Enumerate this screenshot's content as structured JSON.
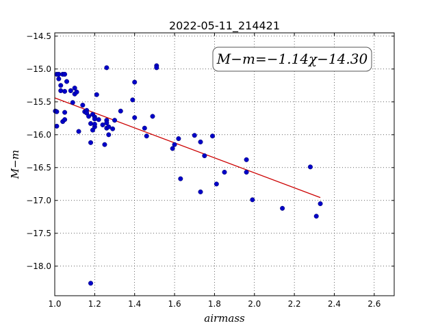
{
  "chart_data": {
    "type": "scatter",
    "title": "2022-05-11_214421",
    "xlabel": "airmass",
    "ylabel": "M−m",
    "xlim": [
      1.0,
      2.7
    ],
    "ylim": [
      -18.45,
      -14.45
    ],
    "y_inverted": true,
    "grid": true,
    "grid_style": "dotted",
    "x_ticks": [
      1.0,
      1.2,
      1.4,
      1.6,
      1.8,
      2.0,
      2.2,
      2.4,
      2.6
    ],
    "x_tick_labels": [
      "1.0",
      "1.2",
      "1.4",
      "1.6",
      "1.8",
      "2.0",
      "2.2",
      "2.4",
      "2.6"
    ],
    "y_ticks": [
      -14.5,
      -15.0,
      -15.5,
      -16.0,
      -16.5,
      -17.0,
      -17.5,
      -18.0
    ],
    "y_tick_labels": [
      "−14.5",
      "−15.0",
      "−15.5",
      "−16.0",
      "−16.5",
      "−17.0",
      "−17.5",
      "−18.0"
    ],
    "annotation": "M−m=−1.14χ−14.30",
    "colors": {
      "points": "#0000c8",
      "fit_line": "#cc0000"
    },
    "series": [
      {
        "points": [
          [
            1.003,
            -15.64
          ],
          [
            1.01,
            -15.65
          ],
          [
            1.01,
            -15.87
          ],
          [
            1.01,
            -15.08
          ],
          [
            1.02,
            -15.08
          ],
          [
            1.02,
            -15.15
          ],
          [
            1.03,
            -15.25
          ],
          [
            1.03,
            -15.33
          ],
          [
            1.04,
            -15.08
          ],
          [
            1.04,
            -15.8
          ],
          [
            1.05,
            -15.08
          ],
          [
            1.05,
            -15.77
          ],
          [
            1.05,
            -15.34
          ],
          [
            1.05,
            -15.66
          ],
          [
            1.06,
            -15.19
          ],
          [
            1.08,
            -15.33
          ],
          [
            1.09,
            -15.51
          ],
          [
            1.1,
            -15.29
          ],
          [
            1.1,
            -15.38
          ],
          [
            1.11,
            -15.35
          ],
          [
            1.12,
            -15.95
          ],
          [
            1.14,
            -15.55
          ],
          [
            1.15,
            -15.65
          ],
          [
            1.16,
            -15.63
          ],
          [
            1.16,
            -15.67
          ],
          [
            1.17,
            -15.72
          ],
          [
            1.18,
            -15.83
          ],
          [
            1.18,
            -16.12
          ],
          [
            1.18,
            -18.26
          ],
          [
            1.19,
            -15.69
          ],
          [
            1.19,
            -15.93
          ],
          [
            1.2,
            -15.88
          ],
          [
            1.2,
            -15.73
          ],
          [
            1.2,
            -15.76
          ],
          [
            1.2,
            -15.84
          ],
          [
            1.21,
            -15.39
          ],
          [
            1.22,
            -15.77
          ],
          [
            1.24,
            -15.85
          ],
          [
            1.25,
            -16.15
          ],
          [
            1.26,
            -14.98
          ],
          [
            1.26,
            -15.78
          ],
          [
            1.26,
            -15.82
          ],
          [
            1.26,
            -15.9
          ],
          [
            1.27,
            -16.0
          ],
          [
            1.27,
            -15.88
          ],
          [
            1.29,
            -15.91
          ],
          [
            1.3,
            -15.78
          ],
          [
            1.33,
            -15.64
          ],
          [
            1.39,
            -15.47
          ],
          [
            1.4,
            -15.2
          ],
          [
            1.4,
            -15.74
          ],
          [
            1.45,
            -15.9
          ],
          [
            1.46,
            -16.02
          ],
          [
            1.49,
            -15.72
          ],
          [
            1.51,
            -14.95
          ],
          [
            1.51,
            -14.98
          ],
          [
            1.59,
            -16.21
          ],
          [
            1.6,
            -16.15
          ],
          [
            1.62,
            -16.06
          ],
          [
            1.63,
            -16.67
          ],
          [
            1.7,
            -16.01
          ],
          [
            1.73,
            -16.87
          ],
          [
            1.73,
            -16.11
          ],
          [
            1.75,
            -16.32
          ],
          [
            1.79,
            -16.02
          ],
          [
            1.81,
            -16.75
          ],
          [
            1.85,
            -16.57
          ],
          [
            1.96,
            -16.57
          ],
          [
            1.96,
            -16.38
          ],
          [
            1.99,
            -16.99
          ],
          [
            2.14,
            -17.12
          ],
          [
            2.28,
            -16.49
          ],
          [
            2.31,
            -17.24
          ],
          [
            2.33,
            -17.05
          ]
        ]
      }
    ],
    "fit_line": {
      "slope": -1.14,
      "intercept": -14.3,
      "x_range": [
        1.0,
        2.33
      ]
    }
  }
}
